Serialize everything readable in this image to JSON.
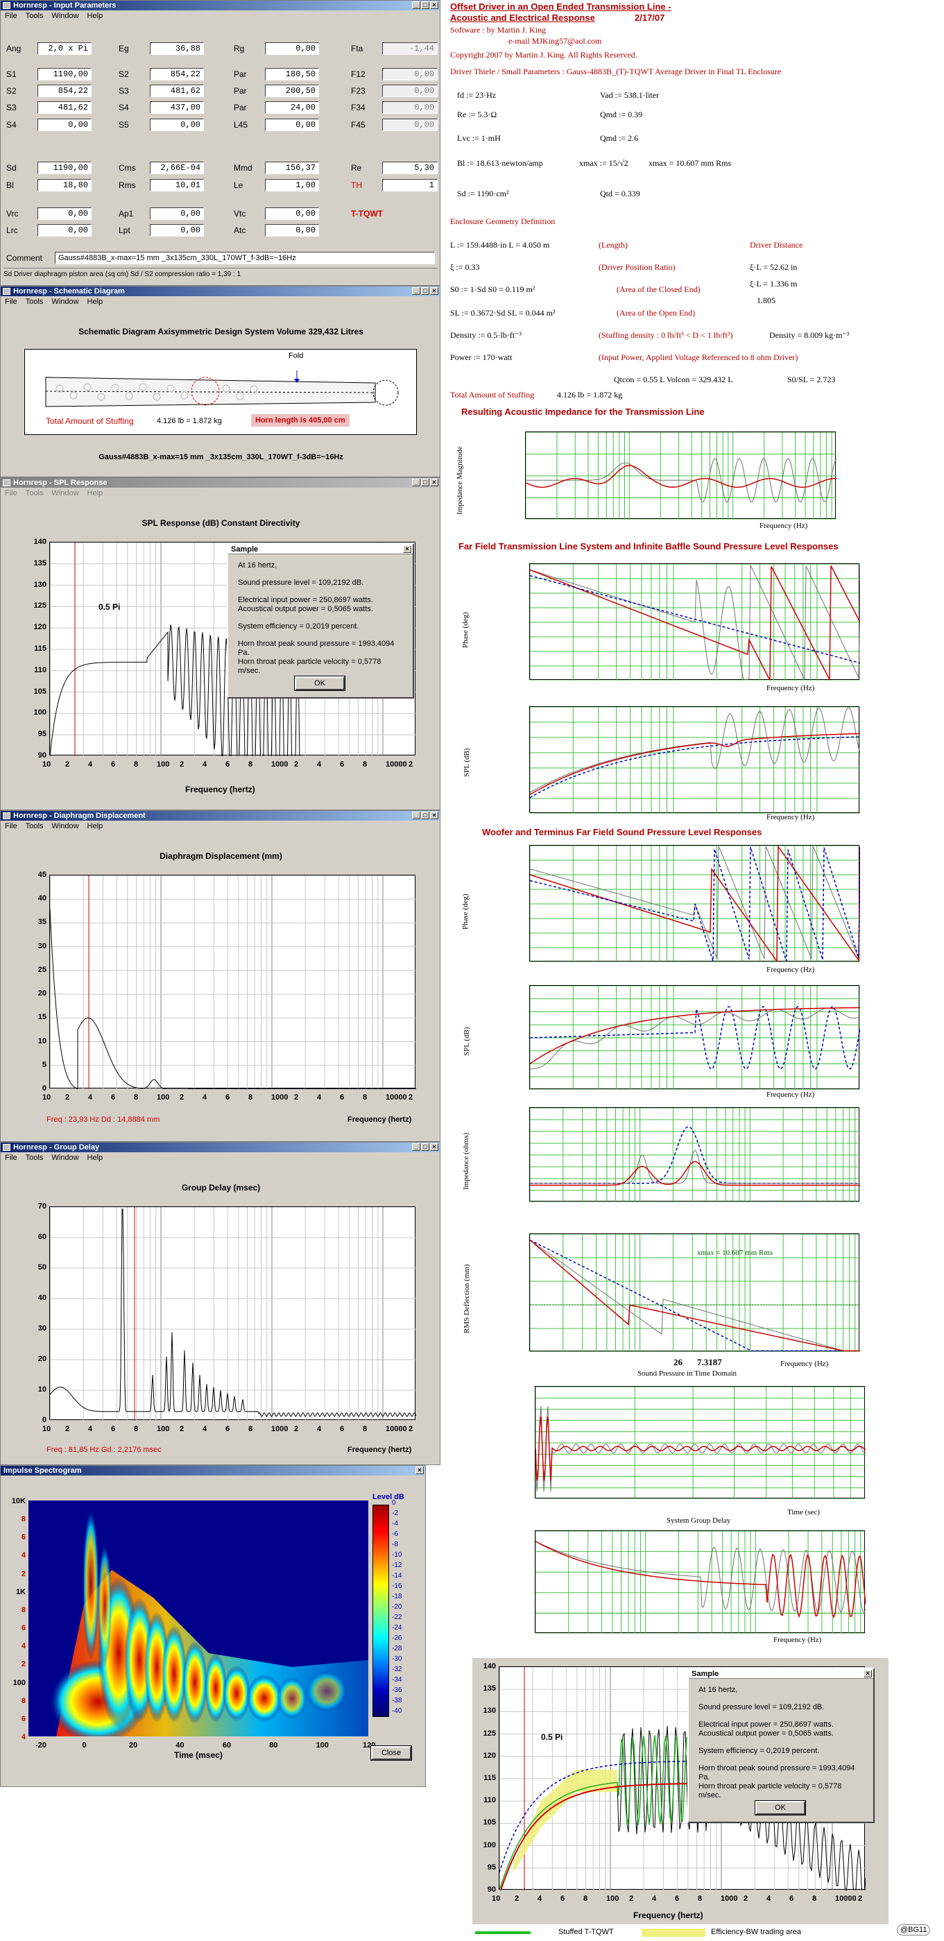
{
  "input_params": {
    "title": "Hornresp - Input Parameters",
    "menu": [
      "File",
      "Tools",
      "Window",
      "Help"
    ],
    "rows": [
      [
        {
          "l": "Ang",
          "v": "2,0 x Pi"
        },
        {
          "l": "Eg",
          "v": "36,88"
        },
        {
          "l": "Rg",
          "v": "0,00"
        },
        {
          "l": "Fta",
          "v": "-1,44",
          "g": true
        }
      ],
      [
        {
          "l": "S1",
          "v": "1190,00"
        },
        {
          "l": "S2",
          "v": "854,22"
        },
        {
          "l": "Par",
          "v": "180,50"
        },
        {
          "l": "F12",
          "v": "0,00",
          "g": true
        }
      ],
      [
        {
          "l": "S2",
          "v": "854,22"
        },
        {
          "l": "S3",
          "v": "481,62"
        },
        {
          "l": "Par",
          "v": "200,50"
        },
        {
          "l": "F23",
          "v": "0,00",
          "g": true
        }
      ],
      [
        {
          "l": "S3",
          "v": "481,62"
        },
        {
          "l": "S4",
          "v": "437,00"
        },
        {
          "l": "Par",
          "v": "24,00"
        },
        {
          "l": "F34",
          "v": "0,00",
          "g": true
        }
      ],
      [
        {
          "l": "S4",
          "v": "0,00"
        },
        {
          "l": "S5",
          "v": "0,00"
        },
        {
          "l": "L45",
          "v": "0,00"
        },
        {
          "l": "F45",
          "v": "0,00",
          "g": true
        }
      ],
      [
        {
          "l": "Sd",
          "v": "1190,00"
        },
        {
          "l": "Cms",
          "v": "2,66E-04"
        },
        {
          "l": "Mmd",
          "v": "156,37"
        },
        {
          "l": "Re",
          "v": "5,30"
        }
      ],
      [
        {
          "l": "Bl",
          "v": "18,80"
        },
        {
          "l": "Rms",
          "v": "10,01"
        },
        {
          "l": "Le",
          "v": "1,00"
        },
        {
          "l": "TH",
          "v": "1"
        }
      ],
      [
        {
          "l": "Vrc",
          "v": "0,00"
        },
        {
          "l": "Ap1",
          "v": "0,00"
        },
        {
          "l": "Vtc",
          "v": "0,00"
        }
      ],
      [
        {
          "l": "Lrc",
          "v": "0,00"
        },
        {
          "l": "Lpt",
          "v": "0,00"
        },
        {
          "l": "Atc",
          "v": "0,00"
        }
      ]
    ],
    "tqwt_label": "T-TQWT",
    "comment_label": "Comment",
    "comment_value": "Gauss#4883B_x-max=15 mm _3x135cm_330L_170WT_f-3dB=~16Hz",
    "status": "Sd  Driver diaphragm piston area (sq cm)   Sd / S2 compression ratio = 1,39 : 1"
  },
  "schematic": {
    "title": "Hornresp - Schematic Diagram",
    "menu": [
      "File",
      "Tools",
      "Window",
      "Help"
    ],
    "heading": "Schematic Diagram   Axisymmetric Design   System Volume 329,432 Litres",
    "fold": "Fold",
    "stuffing": "Total Amount of Stuffing",
    "stuffing_val": "4.126 lb = 1.872 kg",
    "horn_length": "Horn length is 405,00 cm",
    "caption": "Gauss#4883B_x-max=15 mm _3x135cm_330L_170WT_f-3dB=~16Hz"
  },
  "spl": {
    "title": "Hornresp - SPL Response",
    "menu": [
      "File",
      "Tools",
      "Window",
      "Help"
    ],
    "heading": "SPL Response (dB)   Constant Directivity",
    "xlabel": "Frequency (hertz)",
    "yticks": [
      "140",
      "135",
      "130",
      "125",
      "120",
      "115",
      "110",
      "105",
      "100",
      "95",
      "90"
    ],
    "xticks": [
      "10",
      "2",
      "4",
      "6",
      "8",
      "100",
      "2",
      "4",
      "6",
      "8",
      "1000",
      "2",
      "4",
      "6",
      "8",
      "10000",
      "2"
    ],
    "pi_label": "0.5 Pi",
    "dialog": {
      "title": "Sample",
      "lines": [
        "At 16 hertz,",
        "Sound pressure level = 109,2192 dB.",
        "Electrical input power = 250,8697 watts.",
        "Acoustical output power = 0,5065 watts.",
        "System efficiency = 0,2019 percent.",
        "Horn throat peak sound pressure = 1993,4094 Pa.",
        "Horn throat peak particle velocity = 0,5778 m/sec."
      ],
      "ok": "OK"
    }
  },
  "displacement": {
    "title": "Hornresp - Diaphragm Displacement",
    "menu": [
      "File",
      "Tools",
      "Window",
      "Help"
    ],
    "heading": "Diaphragm Displacement (mm)",
    "xlabel": "Frequency (hertz)",
    "yticks": [
      "45",
      "40",
      "35",
      "30",
      "25",
      "20",
      "15",
      "10",
      "5",
      "0"
    ],
    "xticks": [
      "10",
      "2",
      "4",
      "6",
      "8",
      "100",
      "2",
      "4",
      "6",
      "8",
      "1000",
      "2",
      "4",
      "6",
      "8",
      "10000",
      "2"
    ],
    "readout": "Freq : 23,93 Hz     Dd : 14,8884 mm"
  },
  "group_delay": {
    "title": "Hornresp - Group Delay",
    "menu": [
      "File",
      "Tools",
      "Window",
      "Help"
    ],
    "heading": "Group Delay (msec)",
    "xlabel": "Frequency (hertz)",
    "yticks": [
      "70",
      "60",
      "50",
      "40",
      "30",
      "20",
      "10",
      "0"
    ],
    "xticks": [
      "10",
      "2",
      "4",
      "6",
      "8",
      "100",
      "2",
      "4",
      "6",
      "8",
      "1000",
      "2",
      "4",
      "6",
      "8",
      "10000",
      "2"
    ],
    "readout": "Freq : 81,85 Hz     Gd : 2,2176 msec"
  },
  "spectrogram": {
    "title": "Impulse Spectrogram",
    "level_label": "Level  dB",
    "yticks": [
      "10K",
      "8",
      "6",
      "4",
      "2",
      "1K",
      "8",
      "6",
      "4",
      "2",
      "100",
      "8",
      "6",
      "4"
    ],
    "xticks": [
      "-20",
      "0",
      "20",
      "40",
      "60",
      "80",
      "100",
      "120"
    ],
    "xlabel": "Time (msec)",
    "levels": [
      "0",
      "-2",
      "-4",
      "-6",
      "-8",
      "-10",
      "-12",
      "-14",
      "-16",
      "-18",
      "-20",
      "-22",
      "-24",
      "-26",
      "-28",
      "-30",
      "-32",
      "-34",
      "-36",
      "-38",
      "-40"
    ],
    "close": "Close"
  },
  "mathcad": {
    "title_line1": "Offset Driver in an Open Ended Transmission Line -",
    "title_line2": "Acoustic and Electrical Response",
    "date": "2/17/07",
    "software": "Software :     by      Martin J. King",
    "email": "e-mail  MJKing57@aol.com",
    "copyright": "Copyright 2007 by Martin J. King. All Rights Reserved.",
    "driver_line": "Driver Thiele / Small Parameters :  Gauss-4883B_(T)-TQWT Average Driver in Final TL Enclosure",
    "params": [
      "fd := 23·Hz",
      "Vad := 538.1·liter",
      "Re := 5.3·Ω",
      "Qmd := 0.39",
      "Lvc := 1·mH",
      "Qmd := 2.6",
      "Bl := 18.613·newton/amp",
      "xmax := 15/√2",
      "xmax = 10.607  mm Rms",
      "Sd := 1190·cm²",
      "Qtd = 0.339"
    ],
    "enclosure": "Enclosure Geometry Definition",
    "geom": [
      "L := 159.4488·in      L = 4.050 m",
      "(Length)",
      "Driver Distance",
      "ξ := 0.33",
      "(Driver Position Ratio)",
      "ξ·L = 52.62 in",
      "ξ·L = 1.336 m",
      "1.805",
      "S0 := 1·Sd      S0 = 0.119 m²",
      "(Area of the Closed End)",
      "SL := 0.3672·Sd   SL = 0.044 m²",
      "(Area of the Open End)",
      "Density := 0.5·lb·ft⁻³",
      "(Stuffing density : 0 lb/ft³ < D < 1 lb/ft³)",
      "Density = 8.009 kg·m⁻³",
      "Power := 170·watt",
      "(Input Power, Applied Voltage Referenced to 8 ohm Driver)",
      "Qtcon = 0.55    L   Volcon = 329.432   L",
      "S0/SL = 2.723",
      "Total Amount of Stuffing",
      "4.126 lb = 1.872 kg"
    ],
    "sec_impedance": "Resulting Acoustic Impedance for the Transmission Line",
    "sec_farfield": "Far Field Transmission Line System and Infinite Baffle Sound Pressure Level Responses",
    "sec_woofer": "Woofer and Terminus Far Field Sound Pressure Level Responses",
    "sound_pressure_time": "Sound Pressure in Time Domain",
    "group_delay_lbl": "System Group Delay",
    "freq_hz": "Frequency (Hz)",
    "time_sec": "Time (sec)",
    "xmax_anno": "xmax = 10.607   mm Rms",
    "marker_26": "26",
    "marker_731": "7.3187",
    "legend_green": "Stuffed T-TQWT",
    "legend_yellow": "Efficiency-BW trading area",
    "badge": "@BG11",
    "ylab_imp_mag": "Impedance Magnitude",
    "ylab_phase": "Phase (deg)",
    "ylab_spl": "SPL (dB)",
    "ylab_impedance": "Impedance (ohms)",
    "ylab_rms": "RMS Deflection (mm)"
  }
}
